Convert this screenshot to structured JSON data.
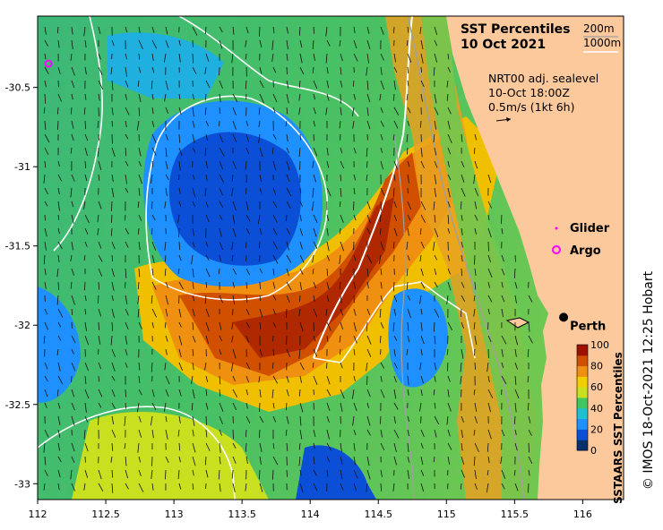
{
  "title": {
    "line1": "SST Percentiles",
    "line2": "10 Oct 2021"
  },
  "contour_legend": {
    "label_a": "200m",
    "label_b": "1000m"
  },
  "current_info": {
    "line1": "NRT00 adj. sealevel",
    "line2": "10-Oct 18:00Z",
    "line3": "0.5m/s (1kt 6h)"
  },
  "legend_markers": {
    "glider": "Glider",
    "argo": "Argo"
  },
  "city": {
    "name": "Perth",
    "lon": 115.86,
    "lat": -31.95
  },
  "argo_position": {
    "lon": 112.08,
    "lat": -30.35
  },
  "colorbar": {
    "title": "SSTAARS SST Percentiles",
    "ticks": [
      "100",
      "80",
      "60",
      "40",
      "20",
      "0"
    ],
    "colors": [
      "#08306b",
      "#0a4fd6",
      "#1e90ff",
      "#20c0d0",
      "#40c860",
      "#c8e020",
      "#f0d000",
      "#f09010",
      "#d05000",
      "#a01000"
    ]
  },
  "x_axis": {
    "range": [
      112,
      116.3
    ],
    "ticks": [
      "112",
      "112.5",
      "113",
      "113.5",
      "114",
      "114.5",
      "115",
      "115.5",
      "116"
    ]
  },
  "y_axis": {
    "range": [
      -33.1,
      -30.05
    ],
    "ticks": [
      "-30.5",
      "-31",
      "-31.5",
      "-32",
      "-32.5",
      "-33"
    ]
  },
  "credit": "© IMOS 18-Oct-2021 12:25 Hobart",
  "colors": {
    "land": "#fcc99c",
    "contour_200m": "#a0a0a0",
    "contour_1000m": "#ffffff"
  }
}
